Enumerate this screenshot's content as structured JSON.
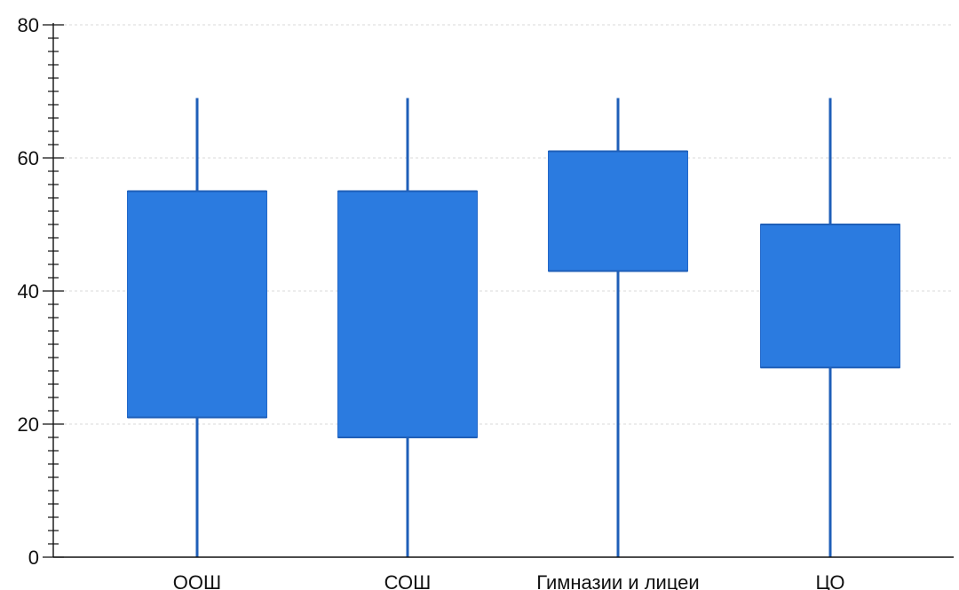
{
  "chart_data": {
    "type": "candlestick",
    "title": "",
    "xlabel": "",
    "ylabel": "",
    "ylim": [
      0,
      80
    ],
    "yticks": [
      0,
      20,
      40,
      60,
      80
    ],
    "yminor_step": 2,
    "grid": true,
    "colors": {
      "box": "#2b7be0",
      "whisker": "#1f5fb8",
      "axis": "#111111",
      "grid": "#d8d8d8"
    },
    "categories": [
      "ООШ",
      "СОШ",
      "Гимназии и лицеи",
      "ЦО"
    ],
    "series": [
      {
        "category": "ООШ",
        "min": 0,
        "q1": 21,
        "q3": 55,
        "max": 69
      },
      {
        "category": "СОШ",
        "min": 0,
        "q1": 18,
        "q3": 55,
        "max": 69
      },
      {
        "category": "Гимназии и лицеи",
        "min": 0,
        "q1": 43,
        "q3": 61,
        "max": 69
      },
      {
        "category": "ЦО",
        "min": 0,
        "q1": 28.5,
        "q3": 50,
        "max": 69
      }
    ]
  }
}
